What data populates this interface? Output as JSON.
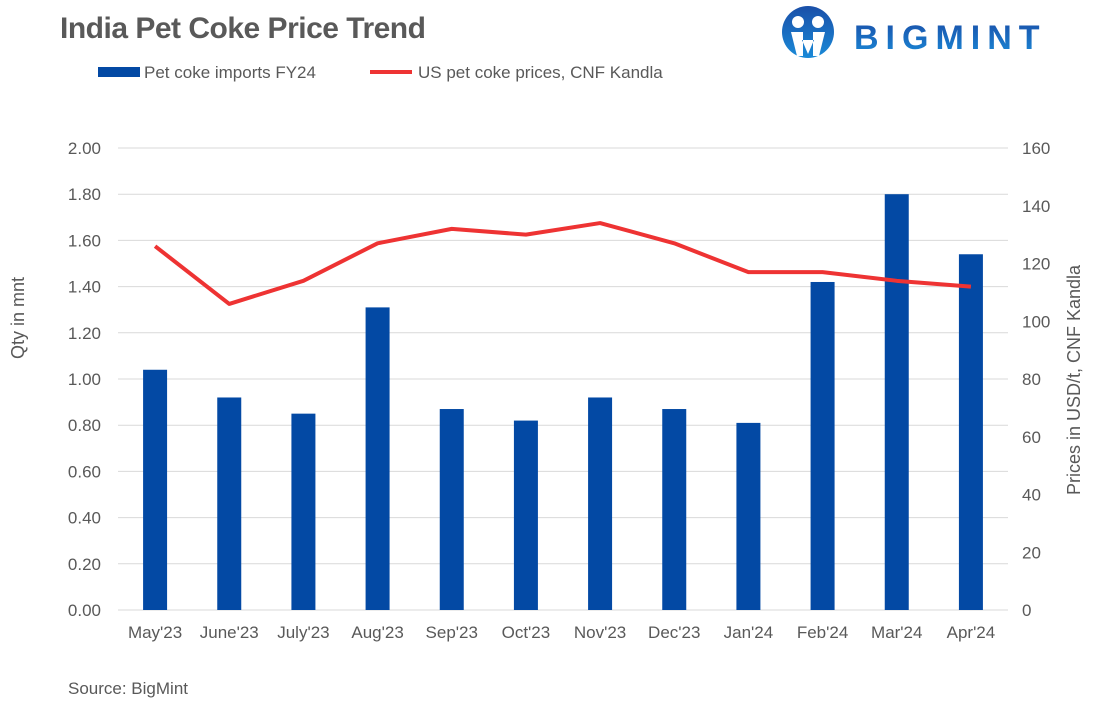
{
  "title": "India Pet Coke Price Trend",
  "logo_text": "BIGMINT",
  "source": "Source: BigMint",
  "chart_data": {
    "type": "bar+line",
    "title": "India Pet Coke Price Trend",
    "categories": [
      "May'23",
      "June'23",
      "July'23",
      "Aug'23",
      "Sep'23",
      "Oct'23",
      "Nov'23",
      "Dec'23",
      "Jan'24",
      "Feb'24",
      "Mar'24",
      "Apr'24"
    ],
    "series": [
      {
        "name": "Pet coke imports FY24",
        "type": "bar",
        "axis": "left",
        "color": "#0349A4",
        "values": [
          1.04,
          0.92,
          0.85,
          1.31,
          0.87,
          0.82,
          0.92,
          0.87,
          0.81,
          1.42,
          1.8,
          1.54
        ]
      },
      {
        "name": "US pet coke prices, CNF Kandla",
        "type": "line",
        "axis": "right",
        "color": "#EE3333",
        "values": [
          126,
          106,
          114,
          127,
          132,
          130,
          134,
          127,
          117,
          117,
          114,
          112
        ]
      }
    ],
    "ylabel": "Qty in mnt",
    "y2label": "Prices in USD/t, CNF Kandla",
    "ylim": [
      0,
      2.0
    ],
    "y2lim": [
      0,
      160
    ],
    "yticks": [
      "0.00",
      "0.20",
      "0.40",
      "0.60",
      "0.80",
      "1.00",
      "1.20",
      "1.40",
      "1.60",
      "1.80",
      "2.00"
    ],
    "y2ticks": [
      "0",
      "20",
      "40",
      "60",
      "80",
      "100",
      "120",
      "140",
      "160"
    ],
    "grid": true,
    "legend": "top-left"
  }
}
